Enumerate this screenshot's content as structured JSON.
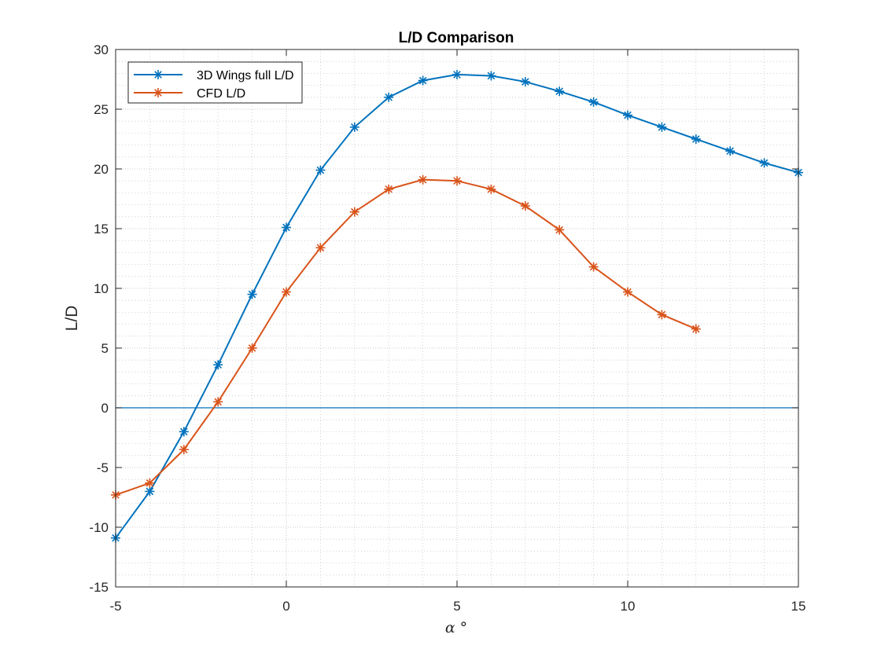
{
  "colors": {
    "series1": "#0072BD",
    "series2": "#D95319",
    "zero_line": "#0072BD",
    "axis": "#262626",
    "grid": "#c8c8c8"
  },
  "chart_data": {
    "type": "line",
    "title": "L/D Comparison",
    "xlabel": "α °",
    "ylabel": "L/D",
    "xlim": [
      -5,
      15
    ],
    "ylim": [
      -15,
      30
    ],
    "xticks": [
      "-5",
      "0",
      "5",
      "10",
      "15"
    ],
    "yticks": [
      "-15",
      "-10",
      "-5",
      "0",
      "5",
      "10",
      "15",
      "20",
      "25",
      "30"
    ],
    "grid": true,
    "minor_grid": true,
    "legend_position": "top-left",
    "marker": "asterisk",
    "reference_line_y": 0,
    "series": [
      {
        "name": "3D Wings full L/D",
        "x": [
          -5,
          -4,
          -3,
          -2,
          -1,
          0,
          1,
          2,
          3,
          4,
          5,
          6,
          7,
          8,
          9,
          10,
          11,
          12,
          13,
          14,
          15
        ],
        "y": [
          -10.9,
          -7.0,
          -2.0,
          3.6,
          9.5,
          15.1,
          19.9,
          23.5,
          26.0,
          27.4,
          27.9,
          27.8,
          27.3,
          26.5,
          25.6,
          24.5,
          23.5,
          22.5,
          21.5,
          20.5,
          19.7
        ]
      },
      {
        "name": "CFD L/D",
        "x": [
          -5,
          -4,
          -3,
          -2,
          -1,
          0,
          1,
          2,
          3,
          4,
          5,
          6,
          7,
          8,
          9,
          10,
          11,
          12
        ],
        "y": [
          -7.3,
          -6.3,
          -3.5,
          0.5,
          5.0,
          9.7,
          13.4,
          16.4,
          18.3,
          19.1,
          19.0,
          18.3,
          16.9,
          14.9,
          11.8,
          9.7,
          7.8,
          6.6
        ]
      }
    ]
  }
}
